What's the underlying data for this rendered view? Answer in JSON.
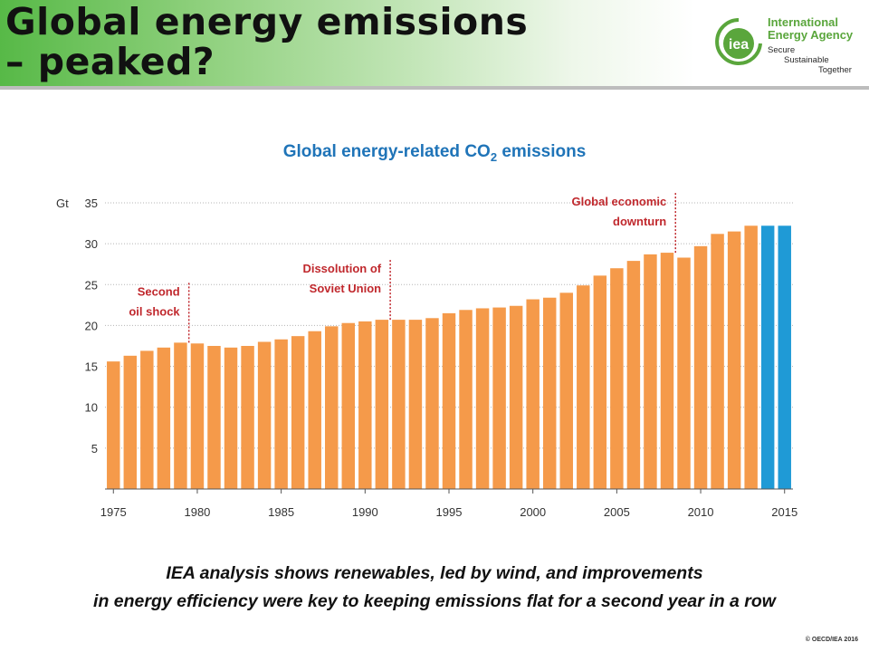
{
  "slide": {
    "title_lines": [
      "Global energy emissions",
      "– peaked?"
    ],
    "caption_lines": [
      "IEA analysis shows renewables, led by wind, and improvements",
      "in energy efficiency were key to keeping emissions flat for a second year in a row"
    ],
    "copyright": "© OECD/IEA 2016"
  },
  "logo": {
    "mark": "iea",
    "name_lines": [
      "International",
      "Energy Agency"
    ],
    "tagline_lines": [
      "Secure",
      "Sustainable",
      "Together"
    ],
    "color": "#5aa63c"
  },
  "chart_data": {
    "type": "bar",
    "title": "Global energy-related CO",
    "title_subscript": "2",
    "title_suffix": " emissions",
    "ylabel": "Gt",
    "ylim": [
      0,
      35
    ],
    "yticks": [
      5,
      10,
      15,
      20,
      25,
      30,
      35
    ],
    "xticks": [
      1975,
      1980,
      1985,
      1990,
      1995,
      2000,
      2005,
      2010,
      2015
    ],
    "grid": true,
    "years": [
      1975,
      1976,
      1977,
      1978,
      1979,
      1980,
      1981,
      1982,
      1983,
      1984,
      1985,
      1986,
      1987,
      1988,
      1989,
      1990,
      1991,
      1992,
      1993,
      1994,
      1995,
      1996,
      1997,
      1998,
      1999,
      2000,
      2001,
      2002,
      2003,
      2004,
      2005,
      2006,
      2007,
      2008,
      2009,
      2010,
      2011,
      2012,
      2013,
      2014,
      2015
    ],
    "values": [
      15.6,
      16.3,
      16.9,
      17.3,
      17.9,
      17.8,
      17.5,
      17.3,
      17.5,
      18.0,
      18.3,
      18.7,
      19.3,
      19.9,
      20.3,
      20.5,
      20.7,
      20.7,
      20.7,
      20.9,
      21.5,
      21.9,
      22.1,
      22.2,
      22.4,
      23.2,
      23.4,
      24.0,
      24.9,
      26.1,
      27.0,
      27.9,
      28.7,
      28.9,
      28.3,
      29.7,
      31.2,
      31.5,
      32.2,
      32.2,
      32.2
    ],
    "colors": {
      "default": "#f59a4a",
      "highlight": "#1f9ad6",
      "highlight_years": [
        2014,
        2015
      ],
      "annotation": "#c0282d",
      "title": "#1f74b8"
    },
    "annotations": [
      {
        "year": 1979.5,
        "lines": [
          "Second",
          "oil shock"
        ]
      },
      {
        "year": 1991.5,
        "lines": [
          "Dissolution of",
          "Soviet Union"
        ]
      },
      {
        "year": 2008.5,
        "lines": [
          "Global economic",
          "downturn"
        ]
      }
    ]
  }
}
